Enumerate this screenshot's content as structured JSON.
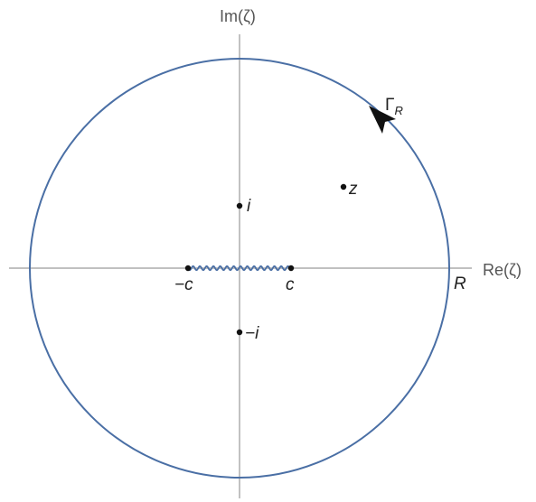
{
  "axes": {
    "x_label": "Re(ζ)",
    "y_label": "Im(ζ)"
  },
  "contour": {
    "label_main": "Γ",
    "label_sub": "R",
    "radius_label": "R",
    "color": "#4a6fa5"
  },
  "points": {
    "z": "z",
    "i": "i",
    "minus_i": "−i",
    "c": "c",
    "minus_c": "−c"
  },
  "colors": {
    "axis": "#9a9a9a",
    "cut": "#4a6fa5",
    "point": "#111111"
  }
}
